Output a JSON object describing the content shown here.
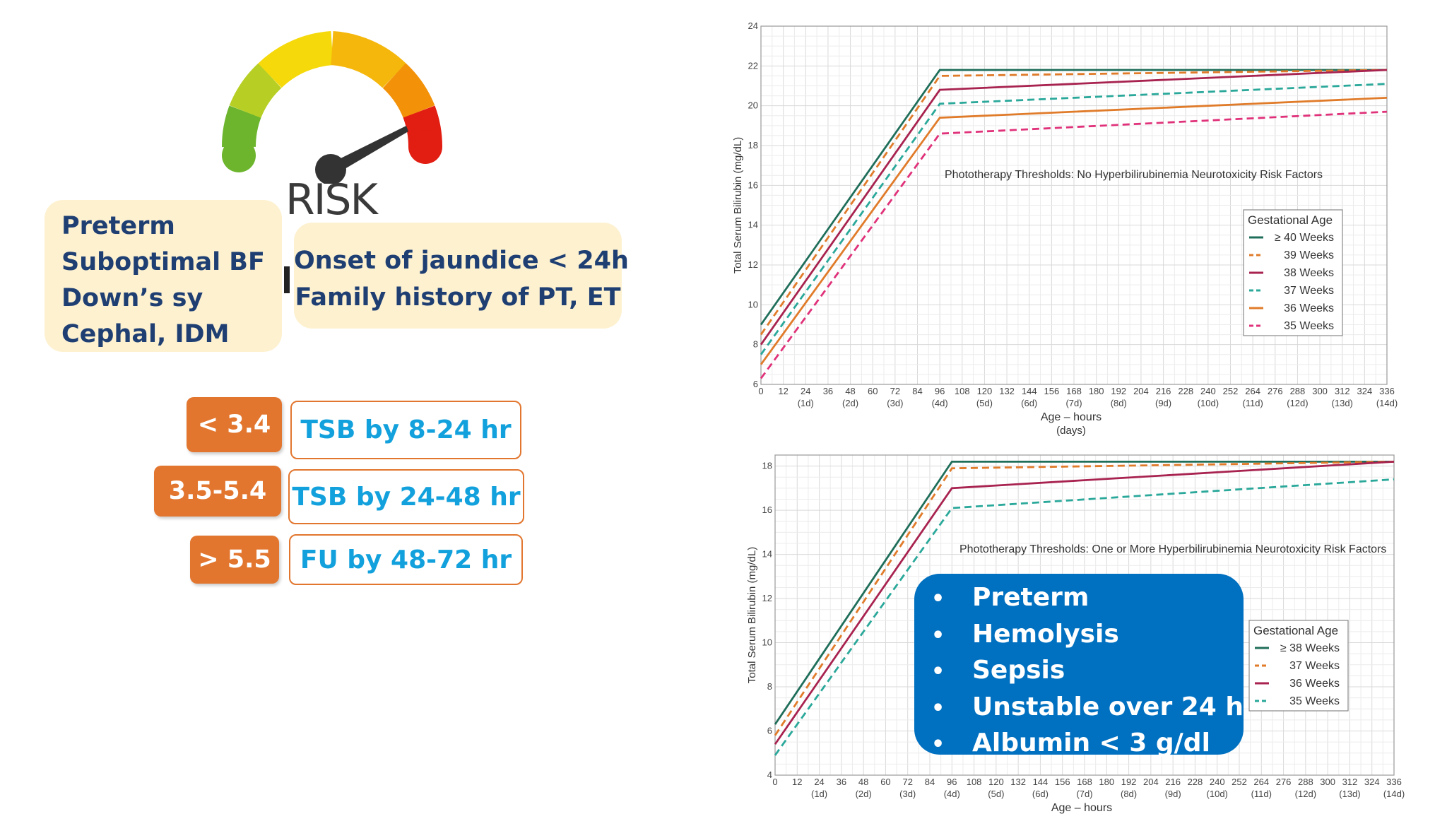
{
  "gauge": {
    "label": "RISK"
  },
  "risk_factors_left": [
    "Preterm",
    "Suboptimal BF",
    "Down’s sy",
    "Cephal, IDM"
  ],
  "risk_factors_right": [
    "Onset of jaundice < 24h",
    "Family history of PT, ET"
  ],
  "followup_table": [
    {
      "value": "< 3.4",
      "action": "TSB by 8-24 hr"
    },
    {
      "value": "3.5-5.4",
      "action": "TSB by 24-48 hr"
    },
    {
      "value": "> 5.5",
      "action": "FU by 48-72 hr"
    }
  ],
  "neurotoxicity_factors": [
    "Preterm",
    "Hemolysis",
    "Sepsis",
    "Unstable over 24 h",
    "Albumin < 3 g/dl"
  ],
  "chart_data": [
    {
      "type": "line",
      "title": "Phototherapy Thresholds:  No Hyperbilirubinemia Neurotoxicity Risk Factors",
      "xlabel": "Age – hours",
      "xlabel2": "(days)",
      "ylabel": "Total Serum Bilirubin (mg/dL)",
      "xlim": [
        0,
        336
      ],
      "ylim": [
        6,
        24
      ],
      "xticks": [
        0,
        12,
        24,
        36,
        48,
        60,
        72,
        84,
        96,
        108,
        120,
        132,
        144,
        156,
        168,
        180,
        192,
        204,
        216,
        228,
        240,
        252,
        264,
        276,
        288,
        300,
        312,
        324,
        336
      ],
      "xticks_days": [
        "(1d)",
        "(2d)",
        "(3d)",
        "(4d)",
        "(5d)",
        "(6d)",
        "(7d)",
        "(8d)",
        "(9d)",
        "(10d)",
        "(11d)",
        "(12d)",
        "(13d)",
        "(14d)"
      ],
      "yticks": [
        6,
        8,
        10,
        12,
        14,
        16,
        18,
        20,
        22,
        24
      ],
      "grid": true,
      "legend_title": "Gestational Age",
      "legend_position": "right",
      "series": [
        {
          "name": "≥ 40 Weeks",
          "color": "#1f6e5a",
          "dash": "solid",
          "x": [
            0,
            96,
            336
          ],
          "y": [
            9.0,
            21.8,
            21.8
          ]
        },
        {
          "name": "39 Weeks",
          "color": "#e07b2a",
          "dash": "dashed",
          "x": [
            0,
            96,
            336
          ],
          "y": [
            8.5,
            21.5,
            21.8
          ]
        },
        {
          "name": "38 Weeks",
          "color": "#a8234f",
          "dash": "solid",
          "x": [
            0,
            96,
            336
          ],
          "y": [
            8.0,
            20.8,
            21.8
          ]
        },
        {
          "name": "37 Weeks",
          "color": "#2aa89a",
          "dash": "dashed",
          "x": [
            0,
            96,
            336
          ],
          "y": [
            7.5,
            20.1,
            21.1
          ]
        },
        {
          "name": "36 Weeks",
          "color": "#e07b2a",
          "dash": "solid",
          "x": [
            0,
            96,
            336
          ],
          "y": [
            7.0,
            19.4,
            20.4
          ]
        },
        {
          "name": "35 Weeks",
          "color": "#e0327a",
          "dash": "dashed",
          "x": [
            0,
            96,
            336
          ],
          "y": [
            6.3,
            18.6,
            19.7
          ]
        }
      ]
    },
    {
      "type": "line",
      "title": "Phototherapy Thresholds:  One or More Hyperbilirubinemia Neurotoxicity Risk Factors",
      "xlabel": "Age – hours",
      "ylabel": "Total Serum Bilirubin (mg/dL)",
      "xlim": [
        0,
        336
      ],
      "ylim": [
        4,
        18.5
      ],
      "xticks": [
        0,
        12,
        24,
        36,
        48,
        60,
        72,
        84,
        96,
        108,
        120,
        132,
        144,
        156,
        168,
        180,
        192,
        204,
        216,
        228,
        240,
        252,
        264,
        276,
        288,
        300,
        312,
        324,
        336
      ],
      "xticks_days": [
        "(1d)",
        "(2d)",
        "(3d)",
        "(4d)",
        "(5d)",
        "(6d)",
        "(7d)",
        "(8d)",
        "(9d)",
        "(10d)",
        "(11d)",
        "(12d)",
        "(13d)",
        "(14d)"
      ],
      "yticks": [
        4,
        6,
        8,
        10,
        12,
        14,
        16,
        18
      ],
      "grid": true,
      "legend_title": "Gestational Age",
      "legend_position": "right",
      "series": [
        {
          "name": "≥ 38 Weeks",
          "color": "#1f6e5a",
          "dash": "solid",
          "x": [
            0,
            96,
            336
          ],
          "y": [
            6.3,
            18.2,
            18.2
          ]
        },
        {
          "name": "37 Weeks",
          "color": "#e07b2a",
          "dash": "dashed",
          "x": [
            0,
            96,
            336
          ],
          "y": [
            5.8,
            17.9,
            18.2
          ]
        },
        {
          "name": "36 Weeks",
          "color": "#a8234f",
          "dash": "solid",
          "x": [
            0,
            96,
            336
          ],
          "y": [
            5.4,
            17.0,
            18.2
          ]
        },
        {
          "name": "35 Weeks",
          "color": "#2aa89a",
          "dash": "dashed",
          "x": [
            0,
            96,
            336
          ],
          "y": [
            4.9,
            16.1,
            17.4
          ]
        }
      ]
    }
  ]
}
